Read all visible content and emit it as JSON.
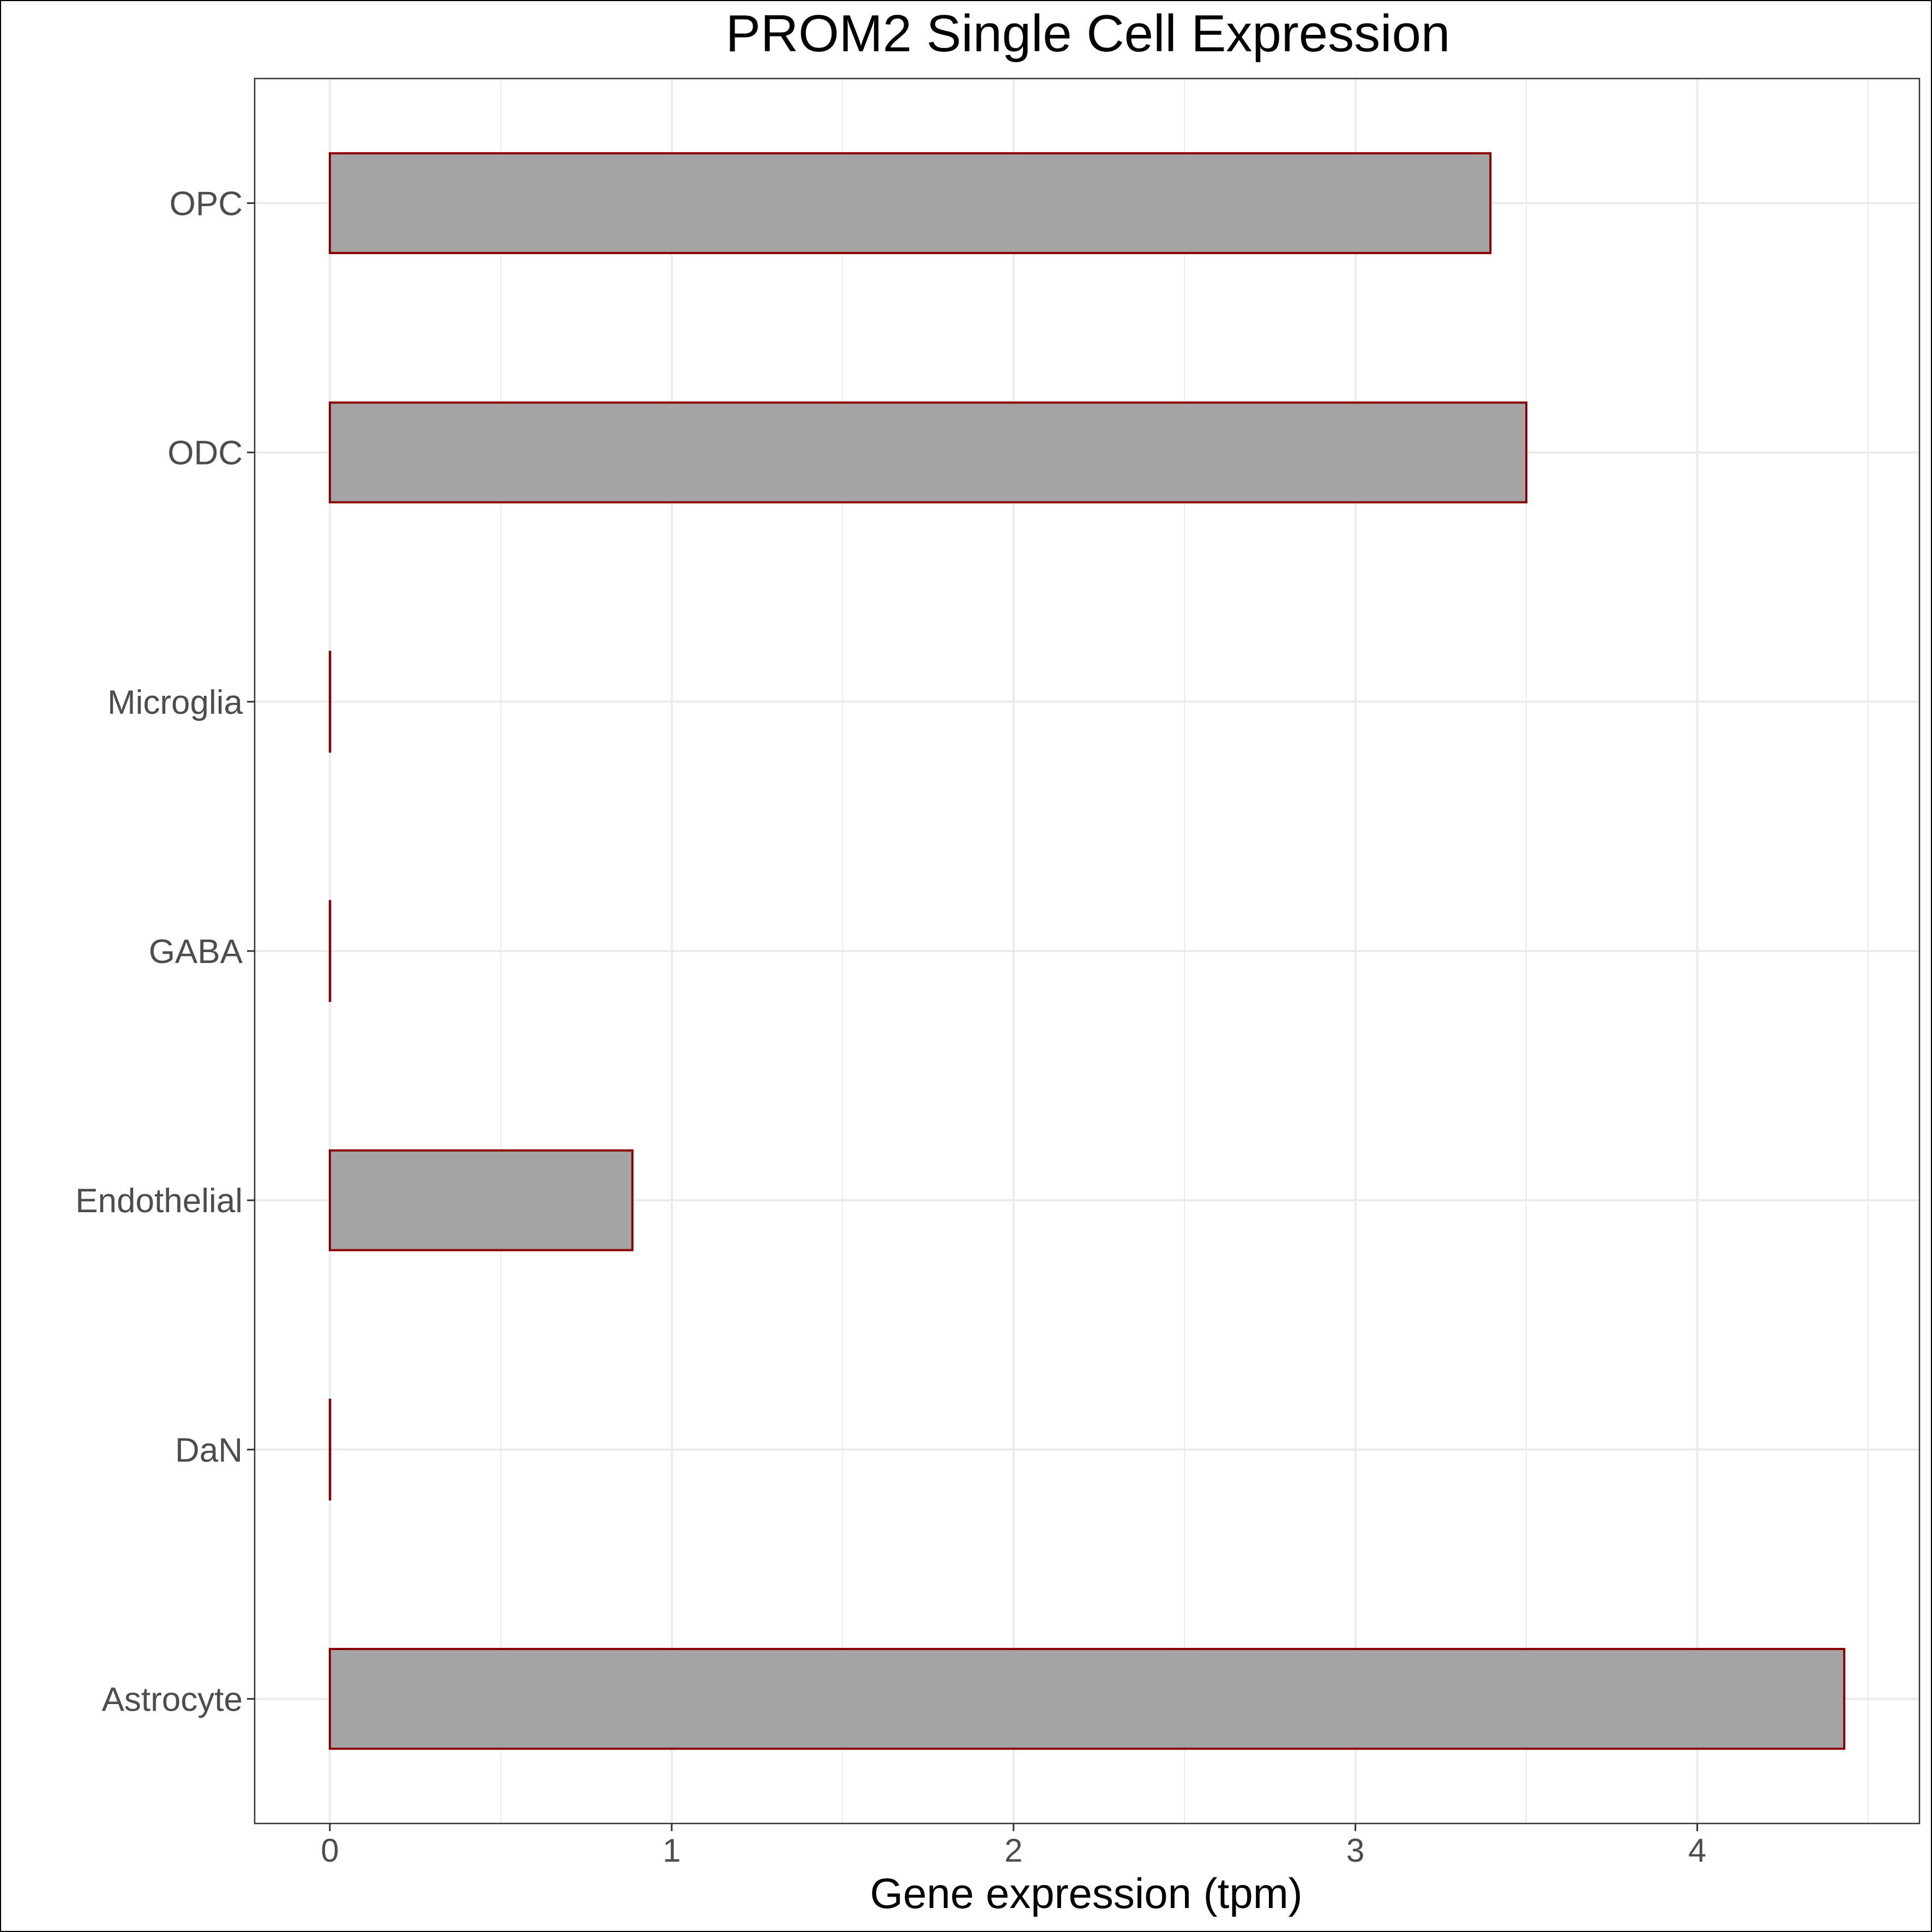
{
  "chart_data": {
    "type": "bar",
    "orientation": "horizontal",
    "title": "PROM2 Single Cell Expression",
    "xlabel": "Gene expression (tpm)",
    "ylabel": "",
    "categories": [
      "Astrocyte",
      "DaN",
      "Endothelial",
      "GABA",
      "Microglia",
      "ODC",
      "OPC"
    ],
    "values": [
      4.43,
      0.0,
      0.885,
      0.0,
      0.0,
      3.5,
      3.395
    ],
    "xlim": [
      -0.22,
      4.65
    ],
    "xticks": [
      0,
      1,
      2,
      3,
      4
    ],
    "grid": true,
    "legend": "none",
    "colors": {
      "bar_fill": "#a4a4a4",
      "bar_outline": "#8b0000",
      "gridline": "#ebebeb",
      "panel_border": "#333333",
      "tick_text": "#4d4d4d"
    }
  }
}
